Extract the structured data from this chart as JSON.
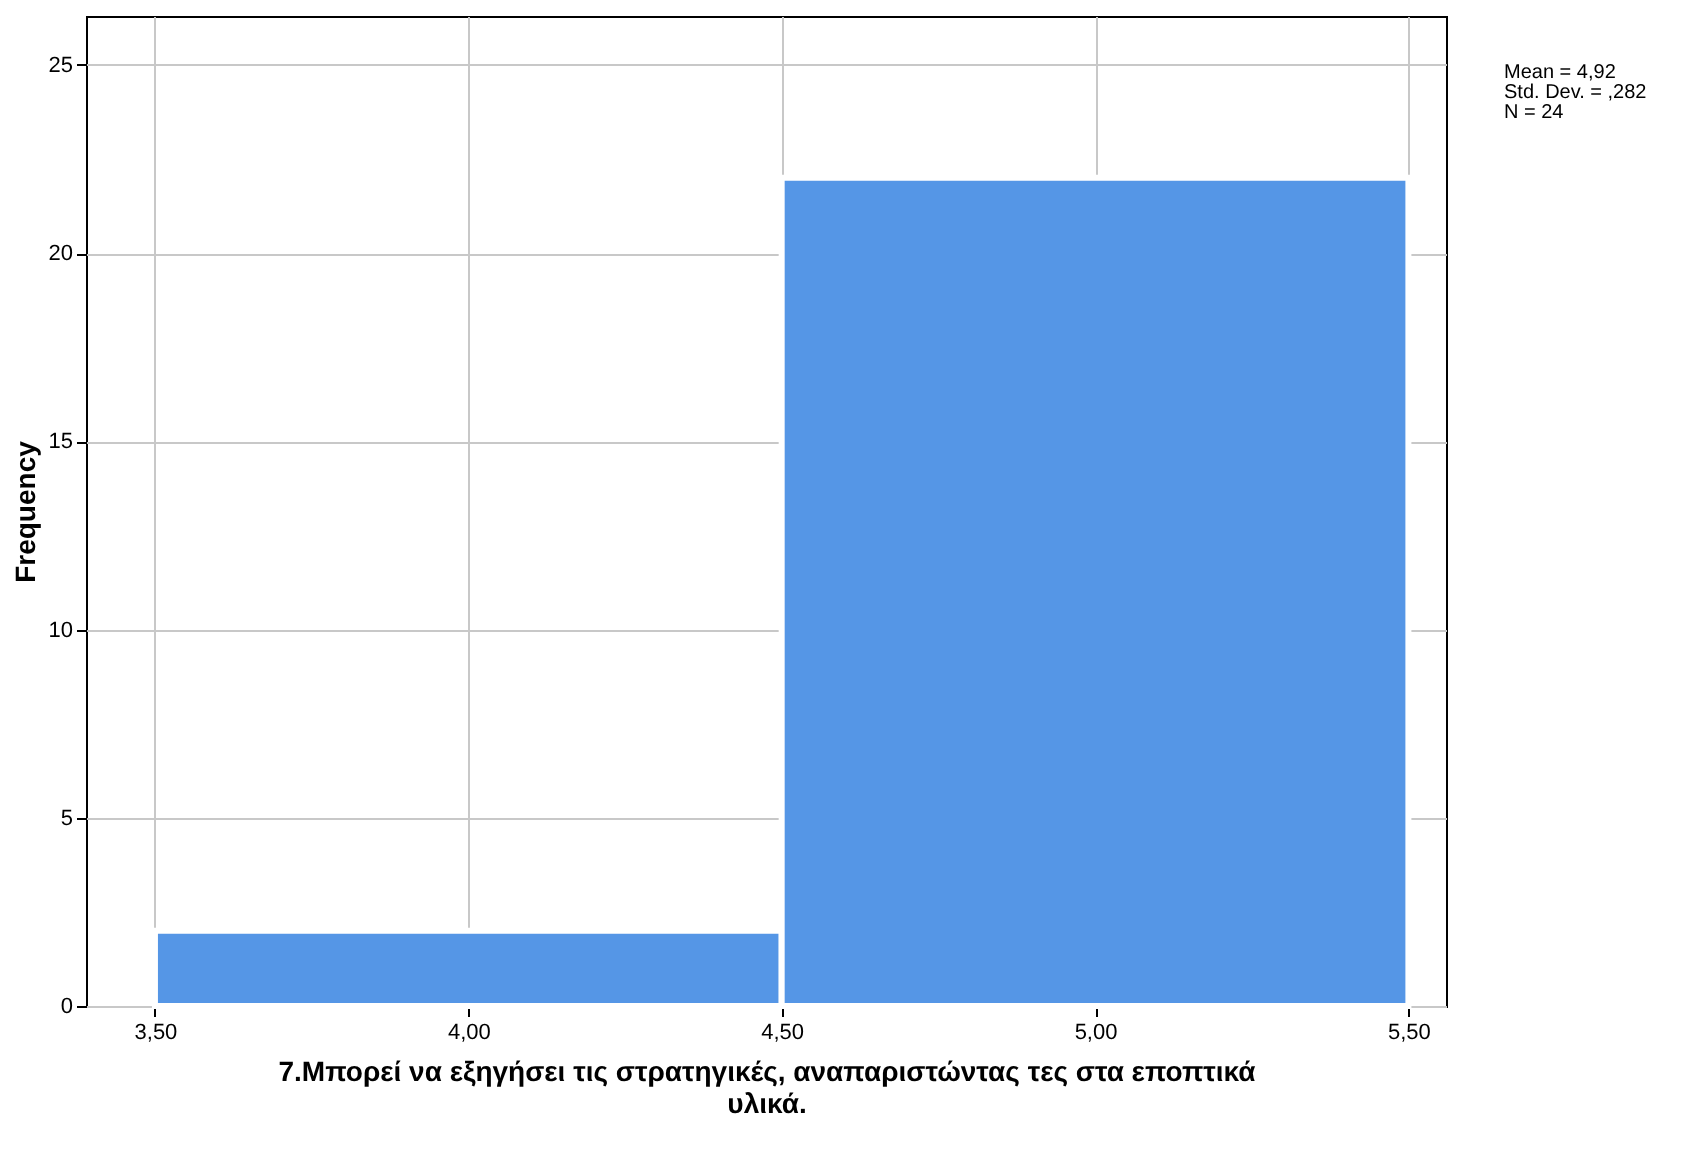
{
  "chart_data": {
    "type": "histogram",
    "xlabel": "7.Μπορεί να εξηγήσει τις στρατηγικές, αναπαριστώντας τες στα εποπτικά υλικά.",
    "ylabel": "Frequency",
    "bins": [
      3.5,
      4.5,
      5.5
    ],
    "values": [
      2,
      22
    ],
    "color": "#5596e6",
    "xlim": [
      3.39,
      5.56
    ],
    "xticks": [
      {
        "value": 3.5,
        "label": "3,50"
      },
      {
        "value": 4,
        "label": "4,00"
      },
      {
        "value": 4.5,
        "label": "4,50"
      },
      {
        "value": 5,
        "label": "5,00"
      },
      {
        "value": 5.5,
        "label": "5,50"
      }
    ],
    "ylim": [
      0,
      26.3
    ],
    "yticks": [
      0,
      5,
      10,
      15,
      20,
      25
    ],
    "grid": true,
    "annotations": [
      "Mean = 4,92",
      "Std. Dev. = ,282",
      "N = 24"
    ]
  }
}
